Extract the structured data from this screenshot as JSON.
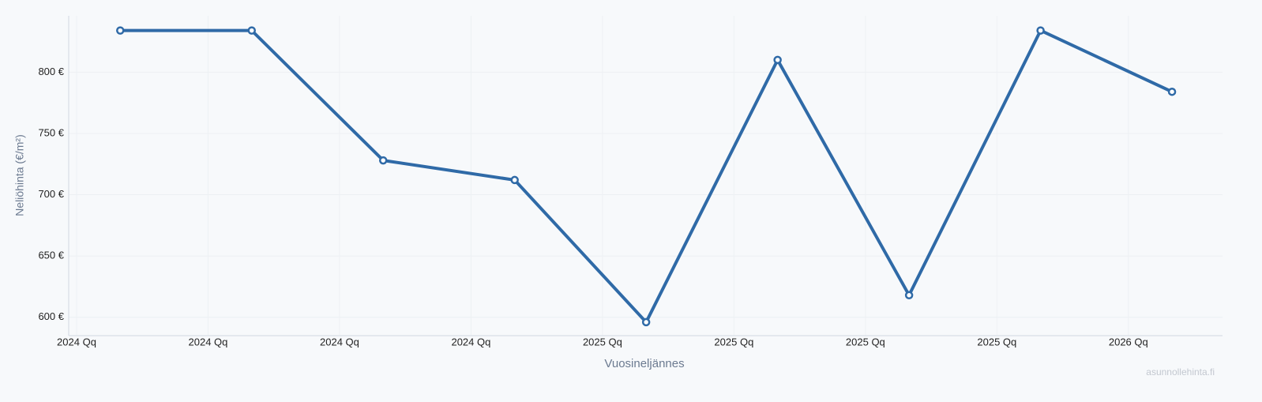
{
  "chart_data": {
    "type": "line",
    "x_label": "Vuosineljännes",
    "y_label": "Neliöhinta (€/m²)",
    "watermark": "asunnollehinta.fi",
    "x": [
      2024.083,
      2024.333,
      2024.583,
      2024.833,
      2025.083,
      2025.333,
      2025.583,
      2025.833,
      2026.083
    ],
    "series": [
      {
        "name": "Neliöhinta",
        "color": "#2f6aa7",
        "values": [
          834,
          834,
          728,
          712,
          596,
          810,
          618,
          834,
          784
        ]
      }
    ],
    "xlim": [
      2023.985,
      2026.179
    ],
    "xticks": [
      {
        "value": 2024,
        "label": "2024 Qq"
      },
      {
        "value": 2024.25,
        "label": "2024 Qq"
      },
      {
        "value": 2024.5,
        "label": "2024 Qq"
      },
      {
        "value": 2024.75,
        "label": "2024 Qq"
      },
      {
        "value": 2025,
        "label": "2025 Qq"
      },
      {
        "value": 2025.25,
        "label": "2025 Qq"
      },
      {
        "value": 2025.5,
        "label": "2025 Qq"
      },
      {
        "value": 2025.75,
        "label": "2025 Qq"
      },
      {
        "value": 2026,
        "label": "2026 Qq"
      }
    ],
    "ylim": [
      585,
      846
    ],
    "yticks": [
      {
        "value": 600,
        "label": "600 €"
      },
      {
        "value": 650,
        "label": "650 €"
      },
      {
        "value": 700,
        "label": "700 €"
      },
      {
        "value": 750,
        "label": "750 €"
      },
      {
        "value": 800,
        "label": "800 €"
      }
    ],
    "grid": true
  }
}
